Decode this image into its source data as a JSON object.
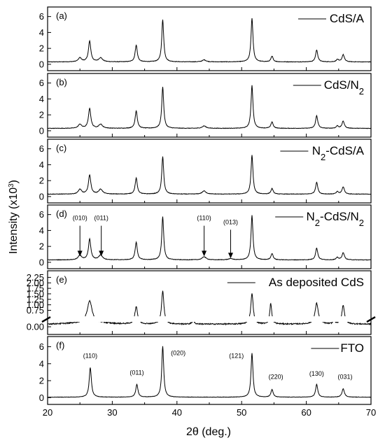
{
  "chart_data": {
    "type": "line",
    "xlabel": "2θ (deg.)",
    "ylabel": "Intensity (x10",
    "ylabel_sup": "3",
    "ylabel_tail": ")",
    "xlim": [
      20,
      70
    ],
    "xticks": [
      20,
      30,
      40,
      50,
      60,
      70
    ],
    "x_tick_labels": [
      "20",
      "30",
      "40",
      "50",
      "60",
      "70"
    ],
    "x_minor_ticks": [
      25,
      35,
      45,
      55,
      65
    ],
    "panels": [
      {
        "tag": "(a)",
        "legend": {
          "main": "CdS/A",
          "sub": "",
          "tail": ""
        },
        "ylim": [
          -0.8,
          7.2
        ],
        "yticks": [
          0,
          2,
          4,
          6
        ],
        "y_tick_labels": [
          "0",
          "2",
          "4",
          "6"
        ],
        "baseline": 0.3,
        "noise": 0.03,
        "broken_axis": false,
        "peaks": [
          {
            "x": 25.0,
            "h": 0.5,
            "w": 0.3
          },
          {
            "x": 26.5,
            "h": 2.6,
            "w": 0.22
          },
          {
            "x": 28.2,
            "h": 0.5,
            "w": 0.35
          },
          {
            "x": 33.7,
            "h": 2.1,
            "w": 0.2
          },
          {
            "x": 37.8,
            "h": 5.3,
            "w": 0.18
          },
          {
            "x": 44.2,
            "h": 0.25,
            "w": 0.35
          },
          {
            "x": 51.6,
            "h": 5.5,
            "w": 0.18
          },
          {
            "x": 54.7,
            "h": 0.7,
            "w": 0.2
          },
          {
            "x": 61.6,
            "h": 1.5,
            "w": 0.2
          },
          {
            "x": 65.7,
            "h": 0.9,
            "w": 0.22
          },
          {
            "x": 64.8,
            "h": 0.3,
            "w": 0.2
          }
        ],
        "annotations": []
      },
      {
        "tag": "(b)",
        "legend": {
          "main": "CdS/N",
          "sub": "2",
          "tail": ""
        },
        "ylim": [
          -0.8,
          7.2
        ],
        "yticks": [
          0,
          2,
          4,
          6
        ],
        "y_tick_labels": [
          "0",
          "2",
          "4",
          "6"
        ],
        "baseline": 0.3,
        "noise": 0.03,
        "broken_axis": false,
        "peaks": [
          {
            "x": 25.0,
            "h": 0.5,
            "w": 0.3
          },
          {
            "x": 26.5,
            "h": 2.5,
            "w": 0.22
          },
          {
            "x": 28.2,
            "h": 0.5,
            "w": 0.35
          },
          {
            "x": 33.7,
            "h": 2.2,
            "w": 0.2
          },
          {
            "x": 37.8,
            "h": 5.2,
            "w": 0.18
          },
          {
            "x": 44.2,
            "h": 0.3,
            "w": 0.35
          },
          {
            "x": 51.6,
            "h": 5.4,
            "w": 0.18
          },
          {
            "x": 54.7,
            "h": 0.8,
            "w": 0.2
          },
          {
            "x": 61.6,
            "h": 1.6,
            "w": 0.2
          },
          {
            "x": 65.7,
            "h": 0.9,
            "w": 0.22
          },
          {
            "x": 64.8,
            "h": 0.3,
            "w": 0.2
          }
        ],
        "annotations": []
      },
      {
        "tag": "(c)",
        "legend": {
          "main": "N",
          "sub": "2",
          "tail": "-CdS/A"
        },
        "ylim": [
          -0.8,
          7.2
        ],
        "yticks": [
          0,
          2,
          4,
          6
        ],
        "y_tick_labels": [
          "0",
          "2",
          "4",
          "6"
        ],
        "baseline": 0.3,
        "noise": 0.03,
        "broken_axis": false,
        "peaks": [
          {
            "x": 25.0,
            "h": 0.6,
            "w": 0.3
          },
          {
            "x": 26.5,
            "h": 2.4,
            "w": 0.22
          },
          {
            "x": 28.2,
            "h": 0.6,
            "w": 0.35
          },
          {
            "x": 33.7,
            "h": 2.0,
            "w": 0.2
          },
          {
            "x": 37.8,
            "h": 4.7,
            "w": 0.18
          },
          {
            "x": 44.2,
            "h": 0.4,
            "w": 0.35
          },
          {
            "x": 51.6,
            "h": 4.9,
            "w": 0.18
          },
          {
            "x": 54.7,
            "h": 0.7,
            "w": 0.2
          },
          {
            "x": 61.6,
            "h": 1.5,
            "w": 0.2
          },
          {
            "x": 65.7,
            "h": 0.9,
            "w": 0.22
          },
          {
            "x": 64.8,
            "h": 0.3,
            "w": 0.2
          }
        ],
        "annotations": []
      },
      {
        "tag": "(d)",
        "legend": {
          "main": "N",
          "sub": "2",
          "tail": "-CdS/N",
          "sub2": "2"
        },
        "ylim": [
          -0.8,
          7.2
        ],
        "yticks": [
          0,
          2,
          4,
          6
        ],
        "y_tick_labels": [
          "0",
          "2",
          "4",
          "6"
        ],
        "baseline": 0.3,
        "noise": 0.03,
        "broken_axis": false,
        "peaks": [
          {
            "x": 25.0,
            "h": 0.6,
            "w": 0.3
          },
          {
            "x": 26.5,
            "h": 2.6,
            "w": 0.22
          },
          {
            "x": 28.2,
            "h": 0.6,
            "w": 0.35
          },
          {
            "x": 33.7,
            "h": 2.2,
            "w": 0.2
          },
          {
            "x": 37.8,
            "h": 5.4,
            "w": 0.18
          },
          {
            "x": 44.2,
            "h": 0.4,
            "w": 0.35
          },
          {
            "x": 48.3,
            "h": 0.15,
            "w": 0.4
          },
          {
            "x": 51.6,
            "h": 5.6,
            "w": 0.18
          },
          {
            "x": 54.7,
            "h": 0.8,
            "w": 0.2
          },
          {
            "x": 61.6,
            "h": 1.5,
            "w": 0.2
          },
          {
            "x": 65.7,
            "h": 0.9,
            "w": 0.22
          },
          {
            "x": 64.8,
            "h": 0.3,
            "w": 0.2
          }
        ],
        "annotations": [
          {
            "label": "(010)",
            "x": 25.0,
            "label_y": 5.3,
            "tip_y": 0.75
          },
          {
            "label": "(011)",
            "x": 28.3,
            "label_y": 5.3,
            "tip_y": 0.75
          },
          {
            "label": "(110)",
            "x": 44.2,
            "label_y": 5.3,
            "tip_y": 0.75
          },
          {
            "label": "(013)",
            "x": 48.3,
            "label_y": 4.8,
            "tip_y": 0.5
          }
        ]
      },
      {
        "tag": "(e)",
        "legend": {
          "main": "As deposited CdS",
          "sub": "",
          "tail": ""
        },
        "ylim": [
          -0.35,
          2.55
        ],
        "yticks": [
          0.0,
          0.75,
          1.0,
          1.25,
          1.5,
          1.75,
          2.0,
          2.25
        ],
        "y_tick_labels": [
          "0.00",
          "0.75",
          "1.00",
          "1.25",
          "1.50",
          "1.75",
          "2.00",
          "2.25"
        ],
        "baseline": 0.12,
        "noise": 0.025,
        "broken_axis": true,
        "peaks": [
          {
            "x": 26.5,
            "h": 1.0,
            "w": 0.45
          },
          {
            "x": 33.7,
            "h": 0.8,
            "w": 0.25
          },
          {
            "x": 37.8,
            "h": 1.5,
            "w": 0.22
          },
          {
            "x": 42.5,
            "h": 0.15,
            "w": 0.2
          },
          {
            "x": 51.6,
            "h": 1.4,
            "w": 0.22
          },
          {
            "x": 54.5,
            "h": 0.95,
            "w": 0.18
          },
          {
            "x": 61.6,
            "h": 0.95,
            "w": 0.3
          },
          {
            "x": 64.3,
            "h": 0.2,
            "w": 0.15
          },
          {
            "x": 65.7,
            "h": 0.85,
            "w": 0.25
          }
        ],
        "annotations": []
      },
      {
        "tag": "(f)",
        "legend": {
          "main": "FTO",
          "sub": "",
          "tail": ""
        },
        "ylim": [
          -0.8,
          7.2
        ],
        "yticks": [
          0,
          2,
          4,
          6
        ],
        "y_tick_labels": [
          "0",
          "2",
          "4",
          "6"
        ],
        "baseline": 0.05,
        "noise": 0.02,
        "broken_axis": false,
        "peaks": [
          {
            "x": 26.6,
            "h": 3.5,
            "w": 0.2
          },
          {
            "x": 33.8,
            "h": 1.5,
            "w": 0.2
          },
          {
            "x": 37.8,
            "h": 6.0,
            "w": 0.18
          },
          {
            "x": 51.6,
            "h": 5.2,
            "w": 0.18
          },
          {
            "x": 54.7,
            "h": 0.9,
            "w": 0.2
          },
          {
            "x": 61.6,
            "h": 1.5,
            "w": 0.2
          },
          {
            "x": 65.7,
            "h": 1.0,
            "w": 0.22
          }
        ],
        "annotations": [
          {
            "label": "(110)",
            "x": 26.6,
            "label_y": 4.7
          },
          {
            "label": "(011)",
            "x": 33.8,
            "label_y": 2.7
          },
          {
            "label": "(020)",
            "x": 40.2,
            "label_y": 5.0
          },
          {
            "label": "(121)",
            "x": 49.2,
            "label_y": 4.7
          },
          {
            "label": "(220)",
            "x": 55.3,
            "label_y": 2.2
          },
          {
            "label": "(130)",
            "x": 61.6,
            "label_y": 2.6
          },
          {
            "label": "(031)",
            "x": 66.0,
            "label_y": 2.2
          }
        ]
      }
    ]
  }
}
